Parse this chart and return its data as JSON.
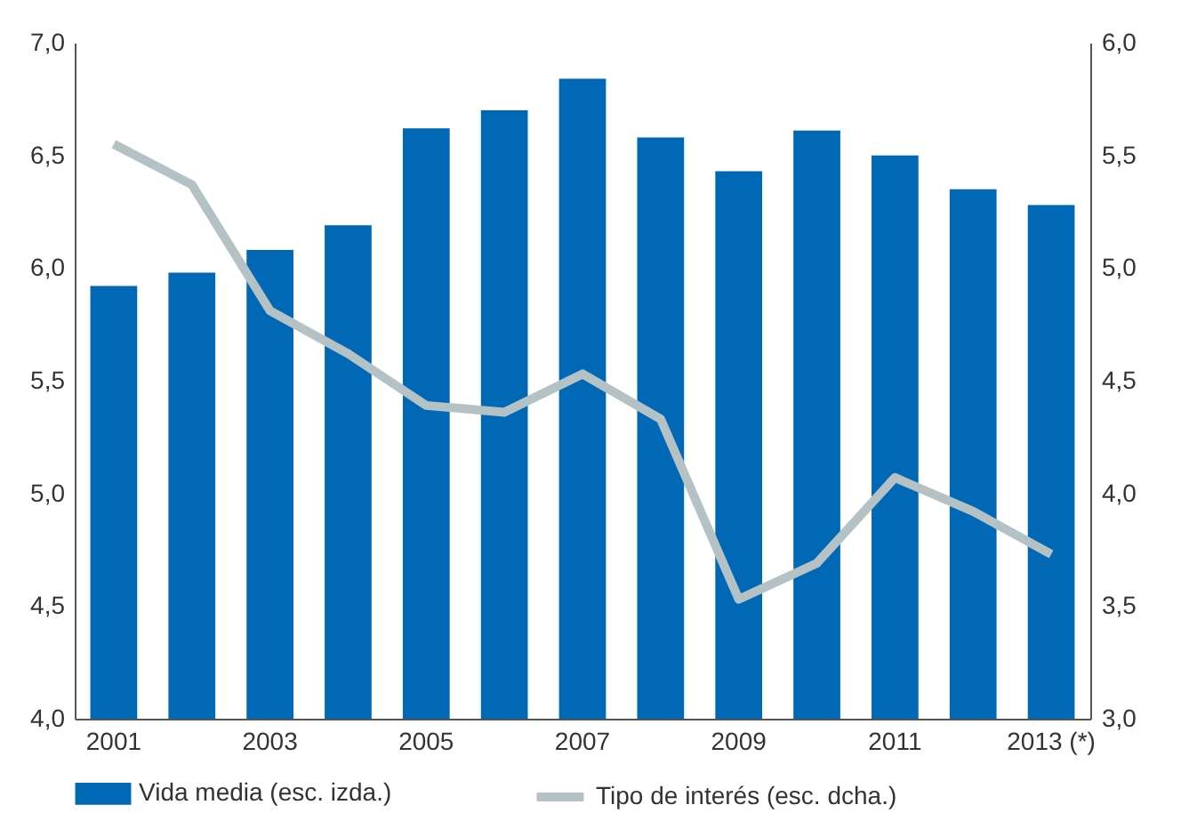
{
  "chart_data": {
    "type": "bar",
    "categories": [
      "2001",
      null,
      "2003",
      null,
      "2005",
      null,
      "2007",
      null,
      "2009",
      null,
      "2011",
      null,
      "2013 (*)"
    ],
    "series": [
      {
        "name": "Vida media (esc. izda.)",
        "color": "#0068b4",
        "values": [
          5.92,
          5.98,
          6.08,
          6.19,
          6.62,
          6.7,
          6.84,
          6.58,
          6.43,
          6.61,
          6.5,
          6.35,
          6.28
        ]
      },
      {
        "name": "Tipo de interés (esc. dcha.)",
        "type": "line",
        "axis": "y2",
        "color": "#b4c2c6",
        "values": [
          5.55,
          5.37,
          4.81,
          4.62,
          4.39,
          4.36,
          4.53,
          4.33,
          3.53,
          3.69,
          4.07,
          3.92,
          3.73
        ]
      }
    ],
    "ylim": [
      4,
      7
    ],
    "yticks": [
      {
        "value": 4,
        "label": "4,0"
      },
      {
        "value": 4.5,
        "label": "4,5"
      },
      {
        "value": 5,
        "label": "5,0"
      },
      {
        "value": 5.5,
        "label": "5,5"
      },
      {
        "value": 6,
        "label": "6,0"
      },
      {
        "value": 6.5,
        "label": "6,5"
      },
      {
        "value": 7,
        "label": "7,0"
      }
    ],
    "y2lim": [
      3,
      6
    ],
    "y2ticks": [
      {
        "value": 3,
        "label": "3,0"
      },
      {
        "value": 3.5,
        "label": "3,5"
      },
      {
        "value": 4,
        "label": "4,0"
      },
      {
        "value": 4.5,
        "label": "4,5"
      },
      {
        "value": 5,
        "label": "5,0"
      },
      {
        "value": 5.5,
        "label": "5,5"
      },
      {
        "value": 6,
        "label": "6,0"
      }
    ],
    "legend": "bottom"
  }
}
